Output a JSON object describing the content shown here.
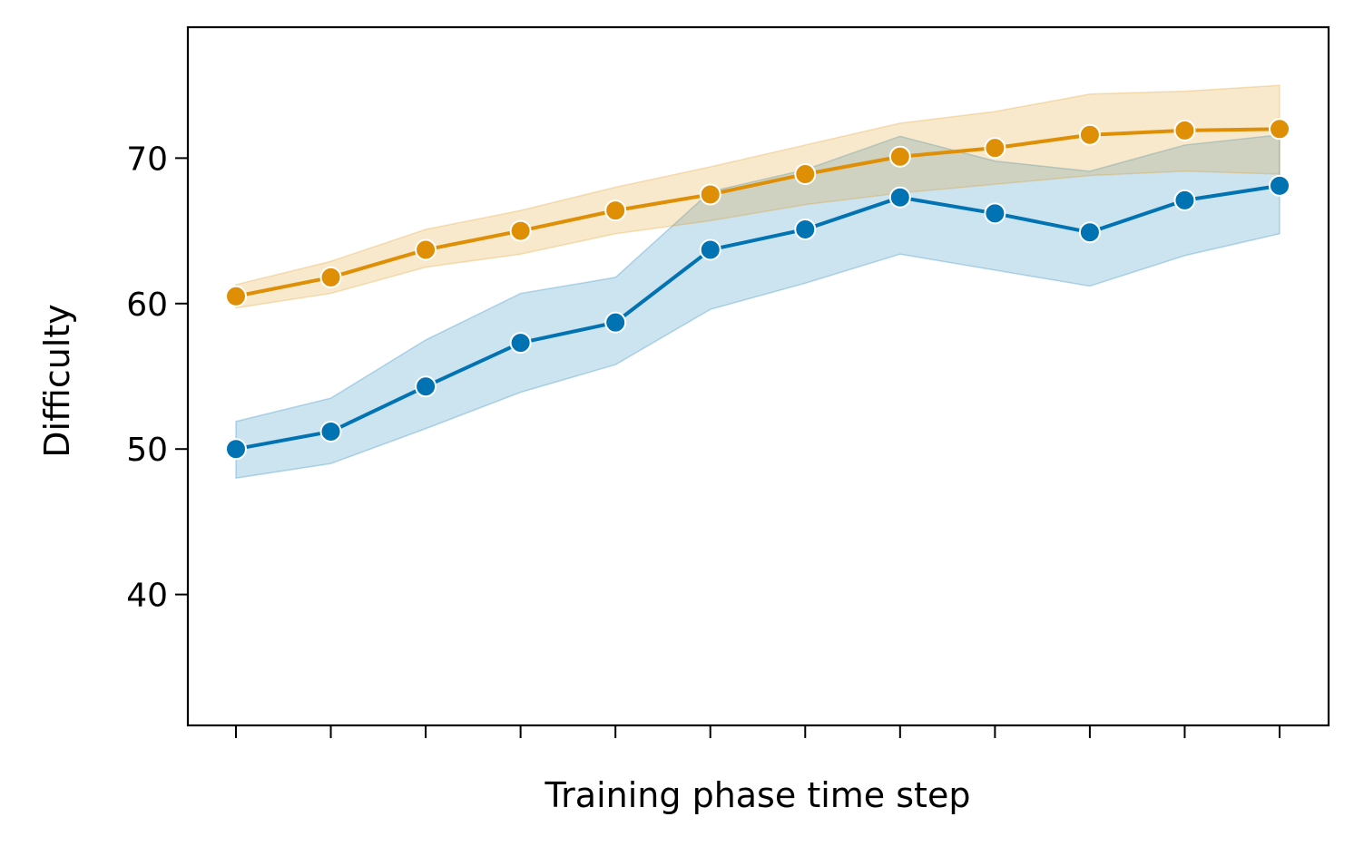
{
  "chart_data": {
    "type": "line",
    "title": "",
    "xlabel": "Training phase time step",
    "ylabel": "Difficulty",
    "x": [
      0,
      1,
      2,
      3,
      4,
      5,
      6,
      7,
      8,
      9,
      10,
      11
    ],
    "x_tick_labels_shown": false,
    "ylim": [
      31,
      79
    ],
    "yticks": [
      40,
      50,
      60,
      70
    ],
    "ytick_labels": [
      "40",
      "50",
      "60",
      "70"
    ],
    "grid": false,
    "legend": "none",
    "series": [
      {
        "color": "#0173b2",
        "values": [
          50.0,
          51.2,
          54.3,
          57.3,
          58.7,
          63.7,
          65.1,
          67.3,
          66.2,
          64.9,
          67.1,
          68.1
        ],
        "ci_lower": [
          48.0,
          49.0,
          51.4,
          53.9,
          55.8,
          59.6,
          61.4,
          63.4,
          62.3,
          61.2,
          63.3,
          64.8
        ],
        "ci_upper": [
          51.9,
          53.5,
          57.5,
          60.7,
          61.8,
          67.7,
          69.2,
          71.5,
          69.8,
          69.1,
          70.9,
          71.6
        ]
      },
      {
        "color": "#de8f05",
        "values": [
          60.5,
          61.8,
          63.7,
          65.0,
          66.4,
          67.5,
          68.9,
          70.1,
          70.7,
          71.6,
          71.9,
          72.0
        ],
        "ci_lower": [
          59.7,
          60.7,
          62.5,
          63.4,
          64.8,
          65.7,
          66.8,
          67.6,
          68.2,
          68.8,
          69.1,
          68.9
        ],
        "ci_upper": [
          61.3,
          62.9,
          65.1,
          66.4,
          68.0,
          69.4,
          70.9,
          72.4,
          73.2,
          74.4,
          74.6,
          75.0
        ]
      }
    ]
  }
}
